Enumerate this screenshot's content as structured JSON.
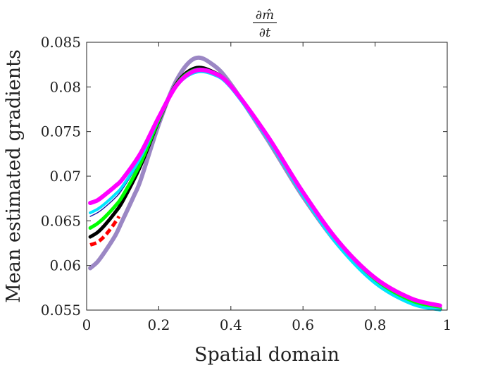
{
  "chart_data": {
    "type": "line",
    "title": "∂m̂/∂t",
    "title_parts": {
      "numerator": "∂m̂",
      "denominator": "∂t"
    },
    "xlabel": "Spatial domain",
    "ylabel": "Mean estimated gradients",
    "xlim": [
      0,
      1
    ],
    "ylim": [
      0.055,
      0.085
    ],
    "xticks": [
      0,
      0.2,
      0.4,
      0.6,
      0.8,
      1
    ],
    "xtick_labels": [
      "0",
      "0.2",
      "0.4",
      "0.6",
      "0.8",
      "1"
    ],
    "yticks": [
      0.055,
      0.06,
      0.065,
      0.07,
      0.075,
      0.08,
      0.085
    ],
    "ytick_labels": [
      "0.055",
      "0.06",
      "0.065",
      "0.07",
      "0.075",
      "0.08",
      "0.085"
    ],
    "grid": false,
    "box": true,
    "series": [
      {
        "color": "#9b87c4",
        "style": "solid",
        "width": 6,
        "x": [
          0.01,
          0.03,
          0.05,
          0.08,
          0.1,
          0.13,
          0.15,
          0.2,
          0.25,
          0.3,
          0.35,
          0.4,
          0.5,
          0.6,
          0.7,
          0.8,
          0.9,
          0.98
        ],
        "y": [
          0.0597,
          0.0604,
          0.0615,
          0.0634,
          0.0651,
          0.0677,
          0.0696,
          0.0758,
          0.0808,
          0.0832,
          0.0825,
          0.0803,
          0.0742,
          0.0677,
          0.0622,
          0.0582,
          0.056,
          0.0552
        ]
      },
      {
        "color": "#ff0000",
        "style": "dashed",
        "width": 5,
        "x": [
          0.01,
          0.03,
          0.05,
          0.07,
          0.09
        ],
        "y": [
          0.0623,
          0.0626,
          0.0633,
          0.0643,
          0.0655
        ]
      },
      {
        "color": "#000000",
        "style": "solid",
        "width": 5,
        "x": [
          0.01,
          0.03,
          0.05,
          0.08,
          0.1,
          0.15,
          0.2,
          0.25,
          0.3,
          0.35,
          0.4,
          0.5,
          0.6,
          0.7,
          0.8,
          0.9,
          0.98
        ],
        "y": [
          0.0632,
          0.0637,
          0.0645,
          0.066,
          0.0672,
          0.0712,
          0.0762,
          0.0804,
          0.0821,
          0.0817,
          0.0801,
          0.0744,
          0.0679,
          0.0622,
          0.0581,
          0.0558,
          0.0551
        ]
      },
      {
        "color": "#00ff00",
        "style": "solid",
        "width": 5,
        "x": [
          0.01,
          0.03,
          0.05,
          0.08,
          0.1,
          0.15,
          0.2,
          0.25,
          0.3,
          0.35,
          0.4,
          0.5,
          0.6,
          0.7,
          0.8,
          0.9,
          0.98
        ],
        "y": [
          0.0642,
          0.0647,
          0.0654,
          0.0667,
          0.0678,
          0.0715,
          0.0763,
          0.0803,
          0.0819,
          0.0816,
          0.08,
          0.0744,
          0.0679,
          0.0623,
          0.0582,
          0.0559,
          0.0552
        ]
      },
      {
        "color": "#1a1aa6",
        "style": "solid",
        "width": 1.5,
        "x": [
          0.01,
          0.03,
          0.05,
          0.08,
          0.1,
          0.15,
          0.2,
          0.25,
          0.3,
          0.35,
          0.4,
          0.5,
          0.6,
          0.7,
          0.8,
          0.9,
          0.98
        ],
        "y": [
          0.0655,
          0.0659,
          0.0665,
          0.0676,
          0.0686,
          0.0719,
          0.0764,
          0.0803,
          0.082,
          0.0817,
          0.0801,
          0.0744,
          0.0678,
          0.0621,
          0.058,
          0.0557,
          0.055
        ]
      },
      {
        "color": "#00e5ff",
        "style": "solid",
        "width": 4,
        "x": [
          0.01,
          0.03,
          0.05,
          0.08,
          0.1,
          0.15,
          0.2,
          0.25,
          0.3,
          0.35,
          0.4,
          0.5,
          0.6,
          0.7,
          0.8,
          0.9,
          0.98
        ],
        "y": [
          0.0659,
          0.0663,
          0.0669,
          0.068,
          0.0689,
          0.0721,
          0.0764,
          0.0801,
          0.0816,
          0.0814,
          0.0799,
          0.0743,
          0.0678,
          0.0621,
          0.058,
          0.0557,
          0.055
        ]
      },
      {
        "color": "#ff00ff",
        "style": "solid",
        "width": 6,
        "x": [
          0.01,
          0.03,
          0.05,
          0.08,
          0.1,
          0.15,
          0.2,
          0.25,
          0.3,
          0.35,
          0.4,
          0.5,
          0.6,
          0.7,
          0.8,
          0.9,
          0.98
        ],
        "y": [
          0.067,
          0.0673,
          0.0679,
          0.0689,
          0.0697,
          0.0726,
          0.0766,
          0.0802,
          0.0818,
          0.0816,
          0.0801,
          0.0746,
          0.0682,
          0.0626,
          0.0586,
          0.0563,
          0.0555
        ]
      }
    ]
  }
}
